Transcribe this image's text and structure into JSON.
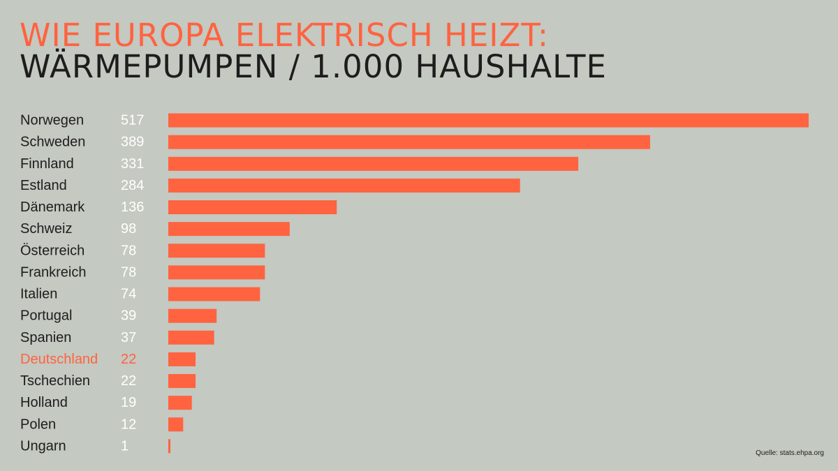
{
  "title": {
    "line1": "WIE EUROPA ELEKTRISCH HEIZT:",
    "line2": "WÄRMEPUMPEN / 1.000 HAUSHALTE"
  },
  "source": "Quelle: stats.ehpa.org",
  "colors": {
    "background": "#c4c9c1",
    "bar": "#ff6340",
    "highlight": "#ff6340",
    "label": "#1d1d1d",
    "value": "#ffffff"
  },
  "chart_data": {
    "type": "bar",
    "orientation": "horizontal",
    "title": "WIE EUROPA ELEKTRISCH HEIZT: WÄRMEPUMPEN / 1.000 HAUSHALTE",
    "categories": [
      "Norwegen",
      "Schweden",
      "Finnland",
      "Estland",
      "Dänemark",
      "Schweiz",
      "Österreich",
      "Frankreich",
      "Italien",
      "Portugal",
      "Spanien",
      "Deutschland",
      "Tschechien",
      "Holland",
      "Polen",
      "Ungarn"
    ],
    "values": [
      517,
      389,
      331,
      284,
      136,
      98,
      78,
      78,
      74,
      39,
      37,
      22,
      22,
      19,
      12,
      1
    ],
    "value_labels": [
      "517",
      "389",
      "331",
      "284",
      "136",
      "98",
      "78",
      "78",
      "74",
      "39",
      "37",
      "22",
      "22",
      "19",
      "12",
      "1"
    ],
    "highlighted_category": "Deutschland",
    "xlim": [
      0,
      517
    ],
    "grid": false,
    "legend": "none"
  }
}
